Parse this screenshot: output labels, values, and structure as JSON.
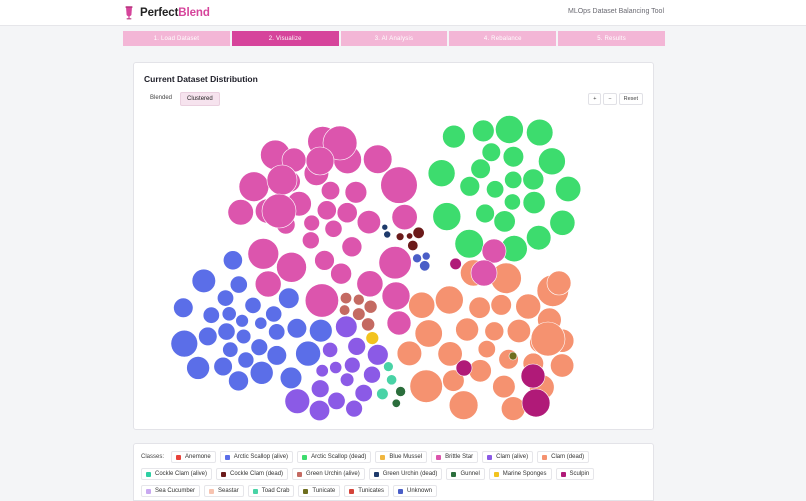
{
  "app": {
    "brand_left": "Perfect",
    "brand_right": "Blend",
    "tagline": "MLOps Dataset Balancing Tool",
    "accent": "#d6449b"
  },
  "steps": [
    {
      "label": "1.  Load Dataset",
      "active": false
    },
    {
      "label": "2.  Visualize",
      "active": true
    },
    {
      "label": "3.  AI Analysis",
      "active": false
    },
    {
      "label": "4.  Rebalance",
      "active": false
    },
    {
      "label": "5.  Results",
      "active": false
    }
  ],
  "panel": {
    "title": "Current Dataset Distribution",
    "view_blended": "Blended",
    "view_clustered": "Clustered",
    "zoom_in": "+",
    "zoom_out": "−",
    "reset": "Reset"
  },
  "legend": {
    "label": "Classes:",
    "items": [
      {
        "name": "Anemone",
        "color": "#e8433b"
      },
      {
        "name": "Arctic Scallop (alive)",
        "color": "#5b6ee8"
      },
      {
        "name": "Arctic Scallop (dead)",
        "color": "#3ddc6e"
      },
      {
        "name": "Blue Mussel",
        "color": "#f0b640"
      },
      {
        "name": "Brittle Star",
        "color": "#dc55ad"
      },
      {
        "name": "Clam (alive)",
        "color": "#8b5ae6"
      },
      {
        "name": "Clam (dead)",
        "color": "#f59270"
      },
      {
        "name": "Cockle Clam (alive)",
        "color": "#2ecfa3"
      },
      {
        "name": "Cockle Clam (dead)",
        "color": "#6b1a1a"
      },
      {
        "name": "Green Urchin (alive)",
        "color": "#c46a62"
      },
      {
        "name": "Green Urchin (dead)",
        "color": "#1e3a6b"
      },
      {
        "name": "Gunnel",
        "color": "#2b6e3c"
      },
      {
        "name": "Marine Sponges",
        "color": "#f2c31e"
      },
      {
        "name": "Sculpin",
        "color": "#b01a78"
      },
      {
        "name": "Sea Cucumber",
        "color": "#c8a8f0"
      },
      {
        "name": "Seastar",
        "color": "#f7c3b0"
      },
      {
        "name": "Toad Crab",
        "color": "#49d3a6"
      },
      {
        "name": "Tunicate",
        "color": "#6e6e1e"
      },
      {
        "name": "Tunicates",
        "color": "#d4443a"
      },
      {
        "name": "Unknown",
        "color": "#4a5ec7"
      }
    ]
  }
}
